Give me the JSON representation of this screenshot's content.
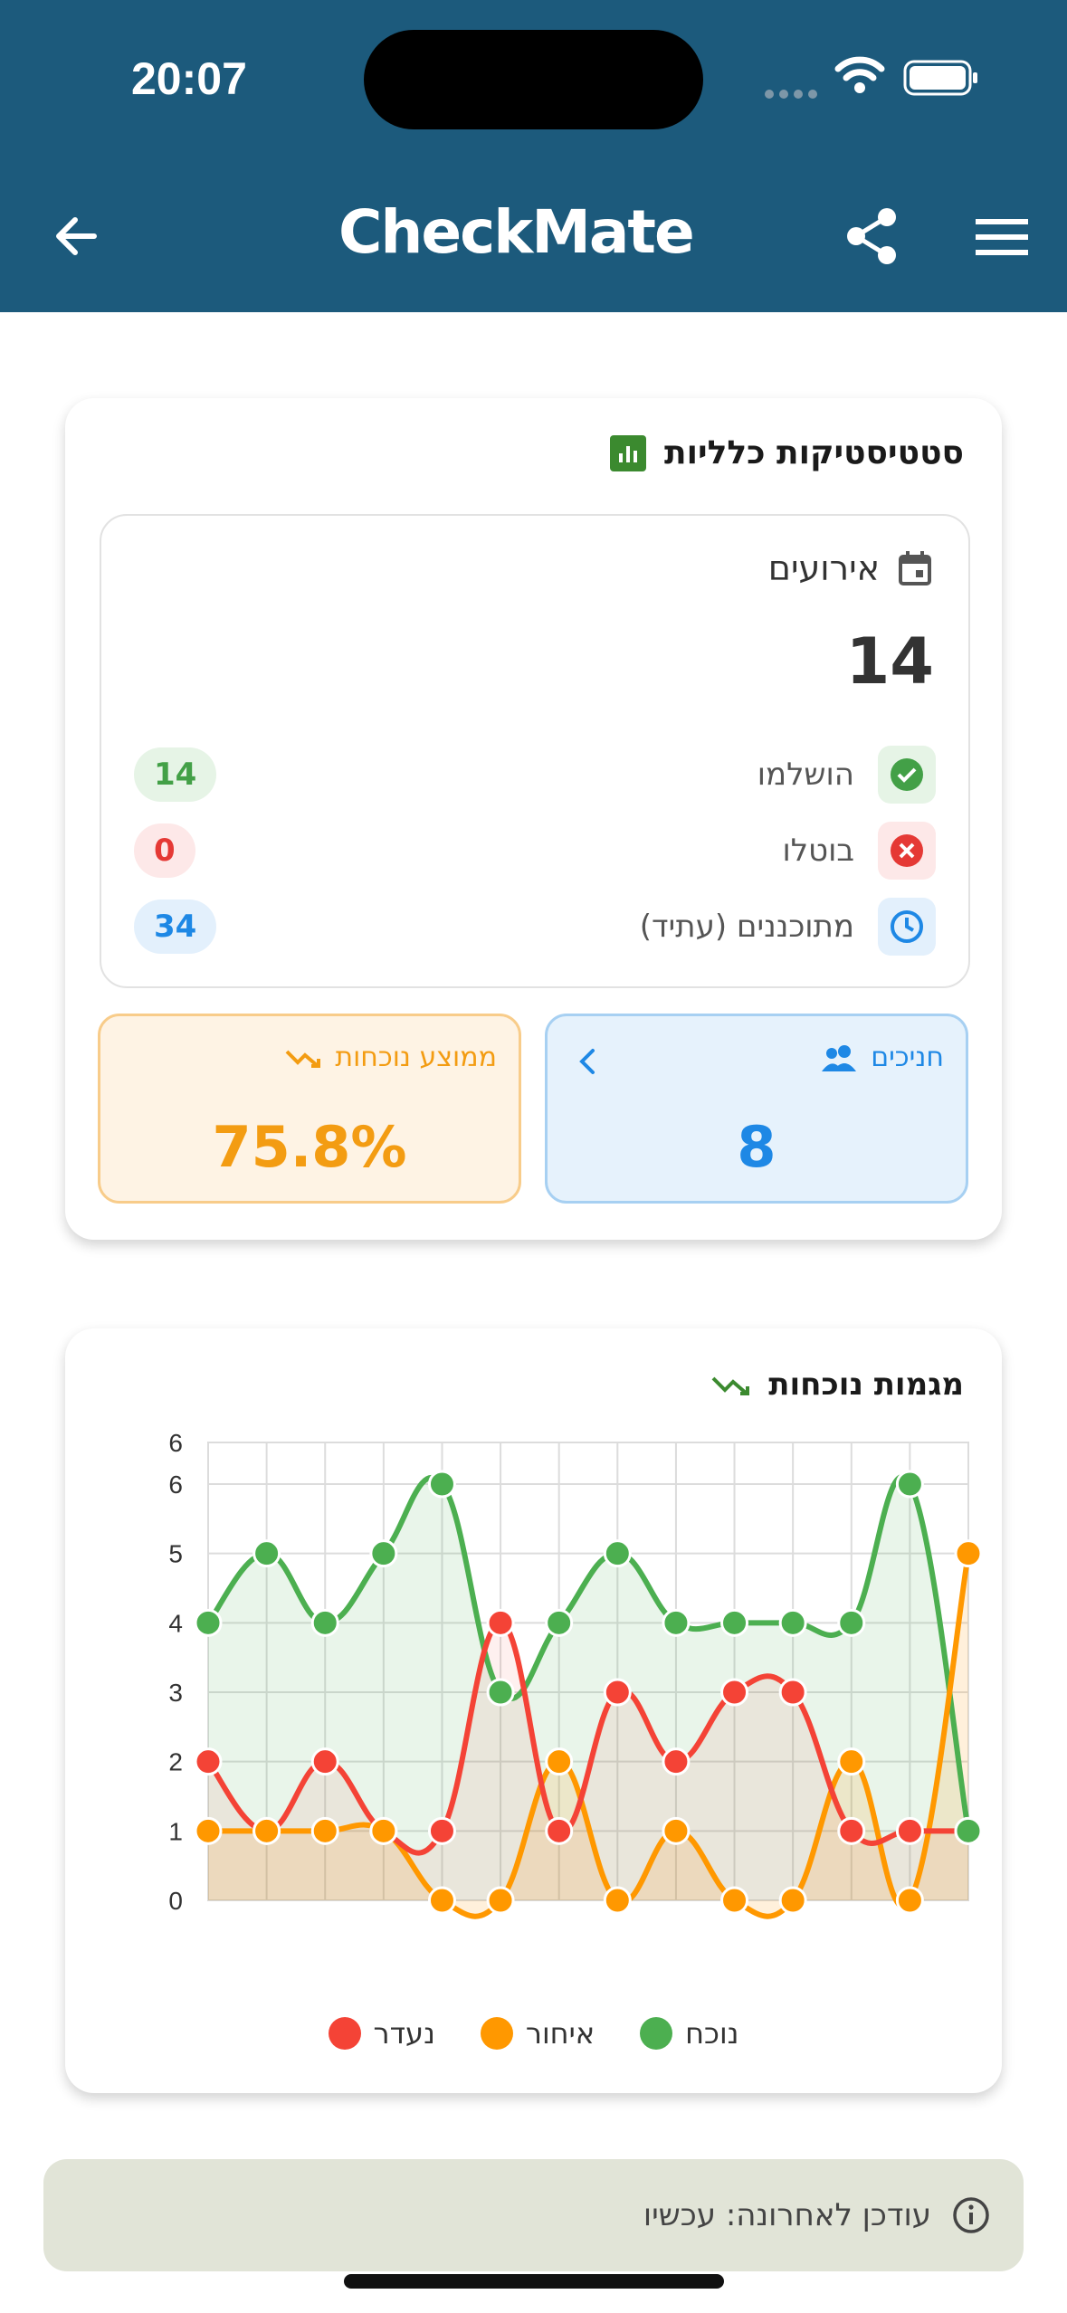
{
  "status_bar": {
    "time": "20:07"
  },
  "header": {
    "app_name": "CheckMate",
    "back_icon": "arrow-left-icon",
    "share_icon": "share-icon",
    "menu_icon": "hamburger-menu-icon"
  },
  "stats_card": {
    "title": "סטטיסטיקות כלליות",
    "events": {
      "label": "אירועים",
      "total": "14",
      "rows": [
        {
          "label": "הושלמו",
          "value": "14",
          "color": "#43a047"
        },
        {
          "label": "בוטלו",
          "value": "0",
          "color": "#e53935"
        },
        {
          "label": "מתוכננים (עתיד)",
          "value": "34",
          "color": "#1e88e5"
        }
      ]
    },
    "students": {
      "label": "חניכים",
      "value": "8"
    },
    "attendance": {
      "label": "ממוצע נוכחות",
      "value": "75.8%"
    }
  },
  "trends_card": {
    "title": "מגמות נוכחות"
  },
  "chart_data": {
    "type": "line",
    "title": "מגמות נוכחות",
    "y_ticks": [
      "0",
      "1",
      "2",
      "3",
      "4",
      "5",
      "6",
      "6"
    ],
    "ylim": [
      0,
      6.6
    ],
    "grid": true,
    "legend_position": "bottom",
    "series": [
      {
        "name": "נוכח",
        "color": "#4caf50",
        "values": [
          4,
          5,
          4,
          5,
          6,
          3,
          4,
          5,
          4,
          4,
          4,
          4,
          6,
          1
        ]
      },
      {
        "name": "איחור",
        "color": "#ff9800",
        "values": [
          1,
          1,
          1,
          1,
          0,
          0,
          2,
          0,
          1,
          0,
          0,
          2,
          0,
          5
        ]
      },
      {
        "name": "נעדר",
        "color": "#f44336",
        "values": [
          2,
          1,
          2,
          1,
          1,
          4,
          1,
          3,
          2,
          3,
          3,
          1,
          1,
          1
        ]
      }
    ]
  },
  "footer": {
    "text": "עודכן לאחרונה: עכשיו",
    "icon": "info-icon"
  }
}
